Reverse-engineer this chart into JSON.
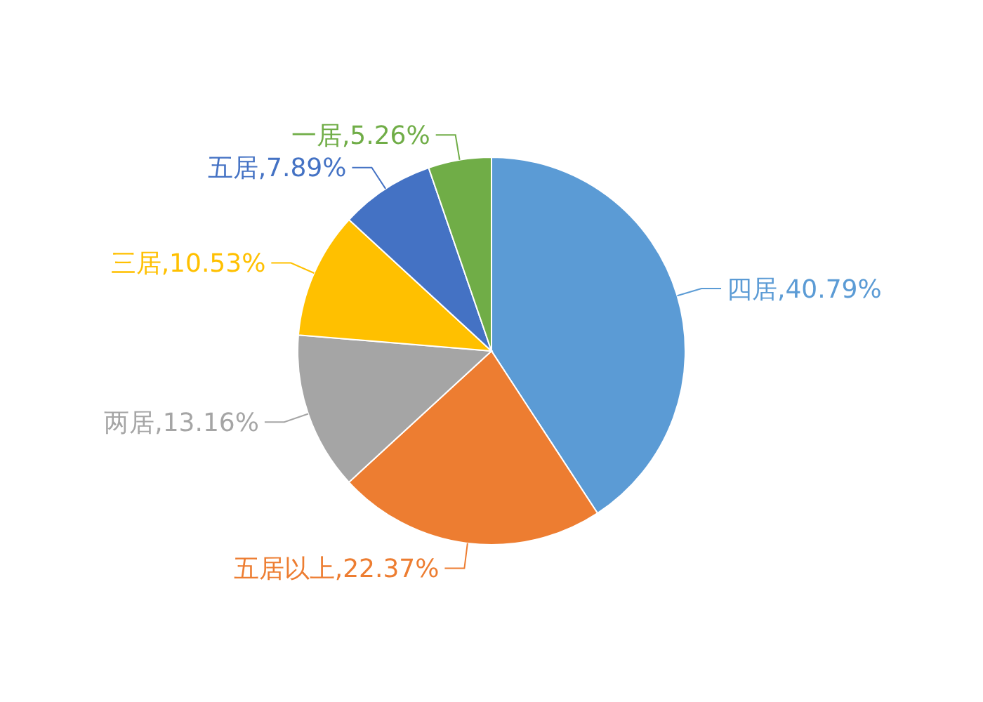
{
  "chart_data": {
    "type": "pie",
    "categories": [
      "四居",
      "五居以上",
      "两居",
      "三居",
      "五居",
      "一居"
    ],
    "values": [
      40.79,
      22.37,
      13.16,
      10.53,
      7.89,
      5.26
    ],
    "value_labels": [
      ",40.79%",
      ",22.37%",
      ",13.16%",
      ",10.53%",
      ",7.89%",
      ",5.26%"
    ],
    "colors": [
      "#5b9bd5",
      "#ed7d31",
      "#a5a5a5",
      "#ffc000",
      "#4472c4",
      "#70ad47"
    ]
  }
}
